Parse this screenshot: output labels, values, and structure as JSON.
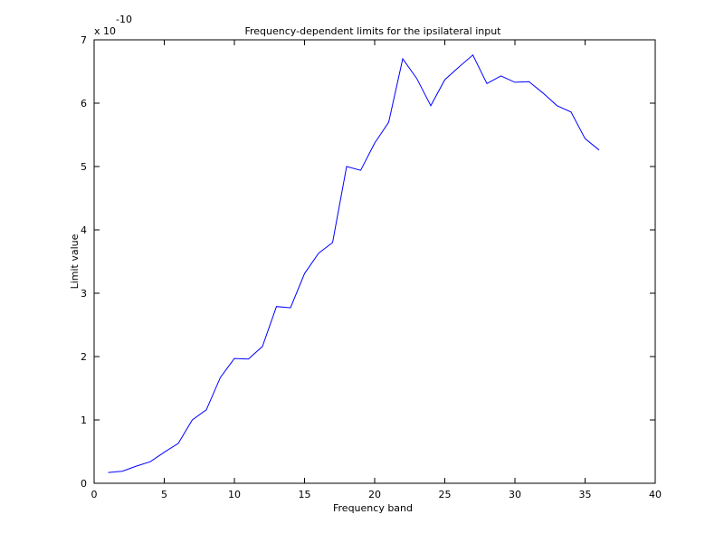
{
  "chart_data": {
    "type": "line",
    "title": "Frequency-dependent limits for the ipsilateral input",
    "x_label": "Frequency band",
    "y_label": "Limit value",
    "y_multiplier": "x 10",
    "y_exponent": "-10",
    "x": [
      1,
      2,
      3,
      4,
      5,
      6,
      7,
      8,
      9,
      10,
      11,
      12,
      13,
      14,
      15,
      16,
      17,
      18,
      19,
      20,
      21,
      22,
      23,
      24,
      25,
      26,
      27,
      28,
      29,
      30,
      31,
      32,
      33,
      34,
      35,
      36
    ],
    "series": [
      {
        "color": "#0000ff",
        "values": [
          0.17,
          0.19,
          0.27,
          0.34,
          0.49,
          0.63,
          1.0,
          1.16,
          1.67,
          1.97,
          1.96,
          2.16,
          2.79,
          2.77,
          3.31,
          3.63,
          3.8,
          5.0,
          4.94,
          5.37,
          5.7,
          6.7,
          6.39,
          5.96,
          6.37,
          6.57,
          6.76,
          6.31,
          6.43,
          6.33,
          6.34,
          6.16,
          5.96,
          5.86,
          5.44,
          5.26
        ]
      }
    ],
    "xlim": [
      0,
      40
    ],
    "xticks": [
      0,
      5,
      10,
      15,
      20,
      25,
      30,
      35,
      40
    ],
    "ylim": [
      0,
      7
    ],
    "yticks": [
      0,
      1,
      2,
      3,
      4,
      5,
      6,
      7
    ],
    "grid": false
  }
}
